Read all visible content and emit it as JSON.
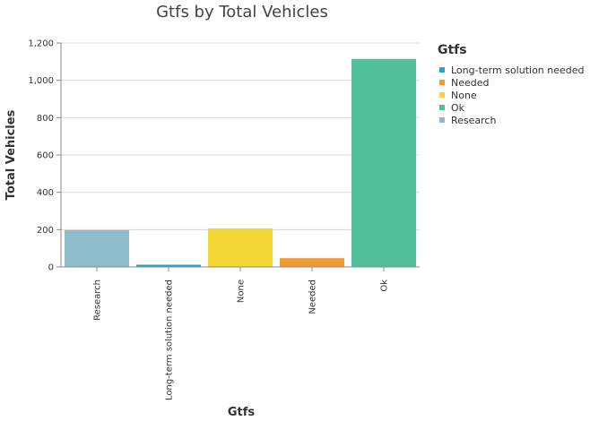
{
  "chart_data": {
    "type": "bar",
    "title": "Gtfs by Total Vehicles",
    "xlabel": "Gtfs",
    "ylabel": "Total Vehicles",
    "categories": [
      "Research",
      "Long-term solution needed",
      "None",
      "Needed",
      "Ok"
    ],
    "values": [
      197,
      12,
      207,
      47,
      1115
    ],
    "colors": [
      "#8fbccb",
      "#2ba3c7",
      "#f2d634",
      "#ed9b33",
      "#52bf9b"
    ],
    "ylim": [
      0,
      1200
    ],
    "yticks": [
      0,
      200,
      400,
      600,
      800,
      1000,
      1200
    ],
    "ytick_labels": [
      "0",
      "200",
      "400",
      "600",
      "800",
      "1,000",
      "1,200"
    ],
    "grid": true,
    "legend": {
      "title": "Gtfs",
      "placement": "right",
      "entries": [
        {
          "label": "Long-term solution needed",
          "color": "#2ba3c7"
        },
        {
          "label": "Needed",
          "color": "#ed9b33"
        },
        {
          "label": "None",
          "color": "#f2d634"
        },
        {
          "label": "Ok",
          "color": "#52bf9b"
        },
        {
          "label": "Research",
          "color": "#8fbccb"
        }
      ]
    }
  }
}
